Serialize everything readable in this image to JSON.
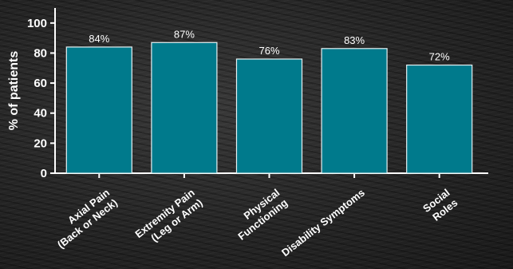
{
  "chart_data": {
    "type": "bar",
    "categories": [
      [
        "Axial Pain",
        "(Back or Neck)"
      ],
      [
        "Extremity Pain",
        "(Leg or Arm)"
      ],
      [
        "Physical",
        "Functioning"
      ],
      [
        "Disability Symptoms"
      ],
      [
        "Social",
        "Roles"
      ]
    ],
    "values": [
      84,
      87,
      76,
      83,
      72
    ],
    "data_labels": [
      "84%",
      "87%",
      "76%",
      "83%",
      "72%"
    ],
    "ylabel": "% of patients",
    "ylim": [
      0,
      110
    ],
    "yticks": [
      0,
      20,
      40,
      60,
      80,
      100
    ],
    "grid": false,
    "legend": "none",
    "colors": {
      "bar": "#007a8c",
      "bar_edge": "#e6f2f4",
      "axis": "#ffffff",
      "text": "#ffffff"
    }
  }
}
